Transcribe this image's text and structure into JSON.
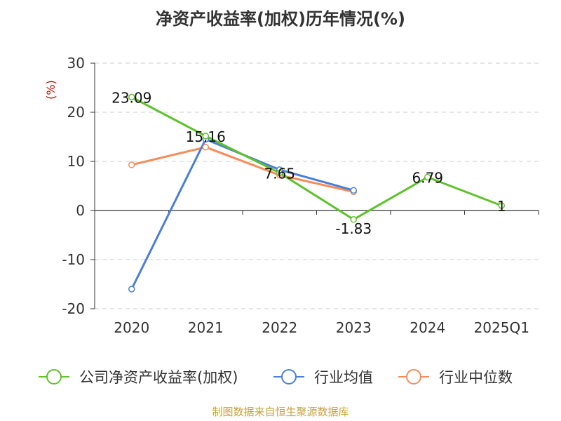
{
  "chart_data": {
    "type": "line",
    "title": "净资产收益率(加权)历年情况(%)",
    "ylabel": "(%)",
    "ylim": [
      -20,
      30
    ],
    "yticks": [
      -20,
      -10,
      0,
      10,
      20,
      30
    ],
    "categories": [
      "2020",
      "2021",
      "2022",
      "2023",
      "2024",
      "2025Q1"
    ],
    "grid": true,
    "legend_position": "bottom",
    "series": [
      {
        "name": "公司净资产收益率(加权)",
        "color": "#5ec22b",
        "values": [
          23.09,
          15.16,
          7.65,
          -1.83,
          6.79,
          1
        ],
        "labels": [
          "23.09",
          "15.16",
          "7.65",
          "-1.83",
          "6.79",
          "1"
        ]
      },
      {
        "name": "行业均值",
        "color": "#4a7fd8",
        "values": [
          -16.0,
          14.5,
          8.3,
          4.1,
          null,
          null
        ]
      },
      {
        "name": "行业中位数",
        "color": "#f58c5a",
        "values": [
          9.3,
          12.9,
          7.2,
          3.8,
          null,
          null
        ]
      }
    ]
  },
  "ylabel_color": "#cc0000",
  "source": {
    "text": "制图数据来自恒生聚源数据库",
    "color": "#c9a13b"
  }
}
